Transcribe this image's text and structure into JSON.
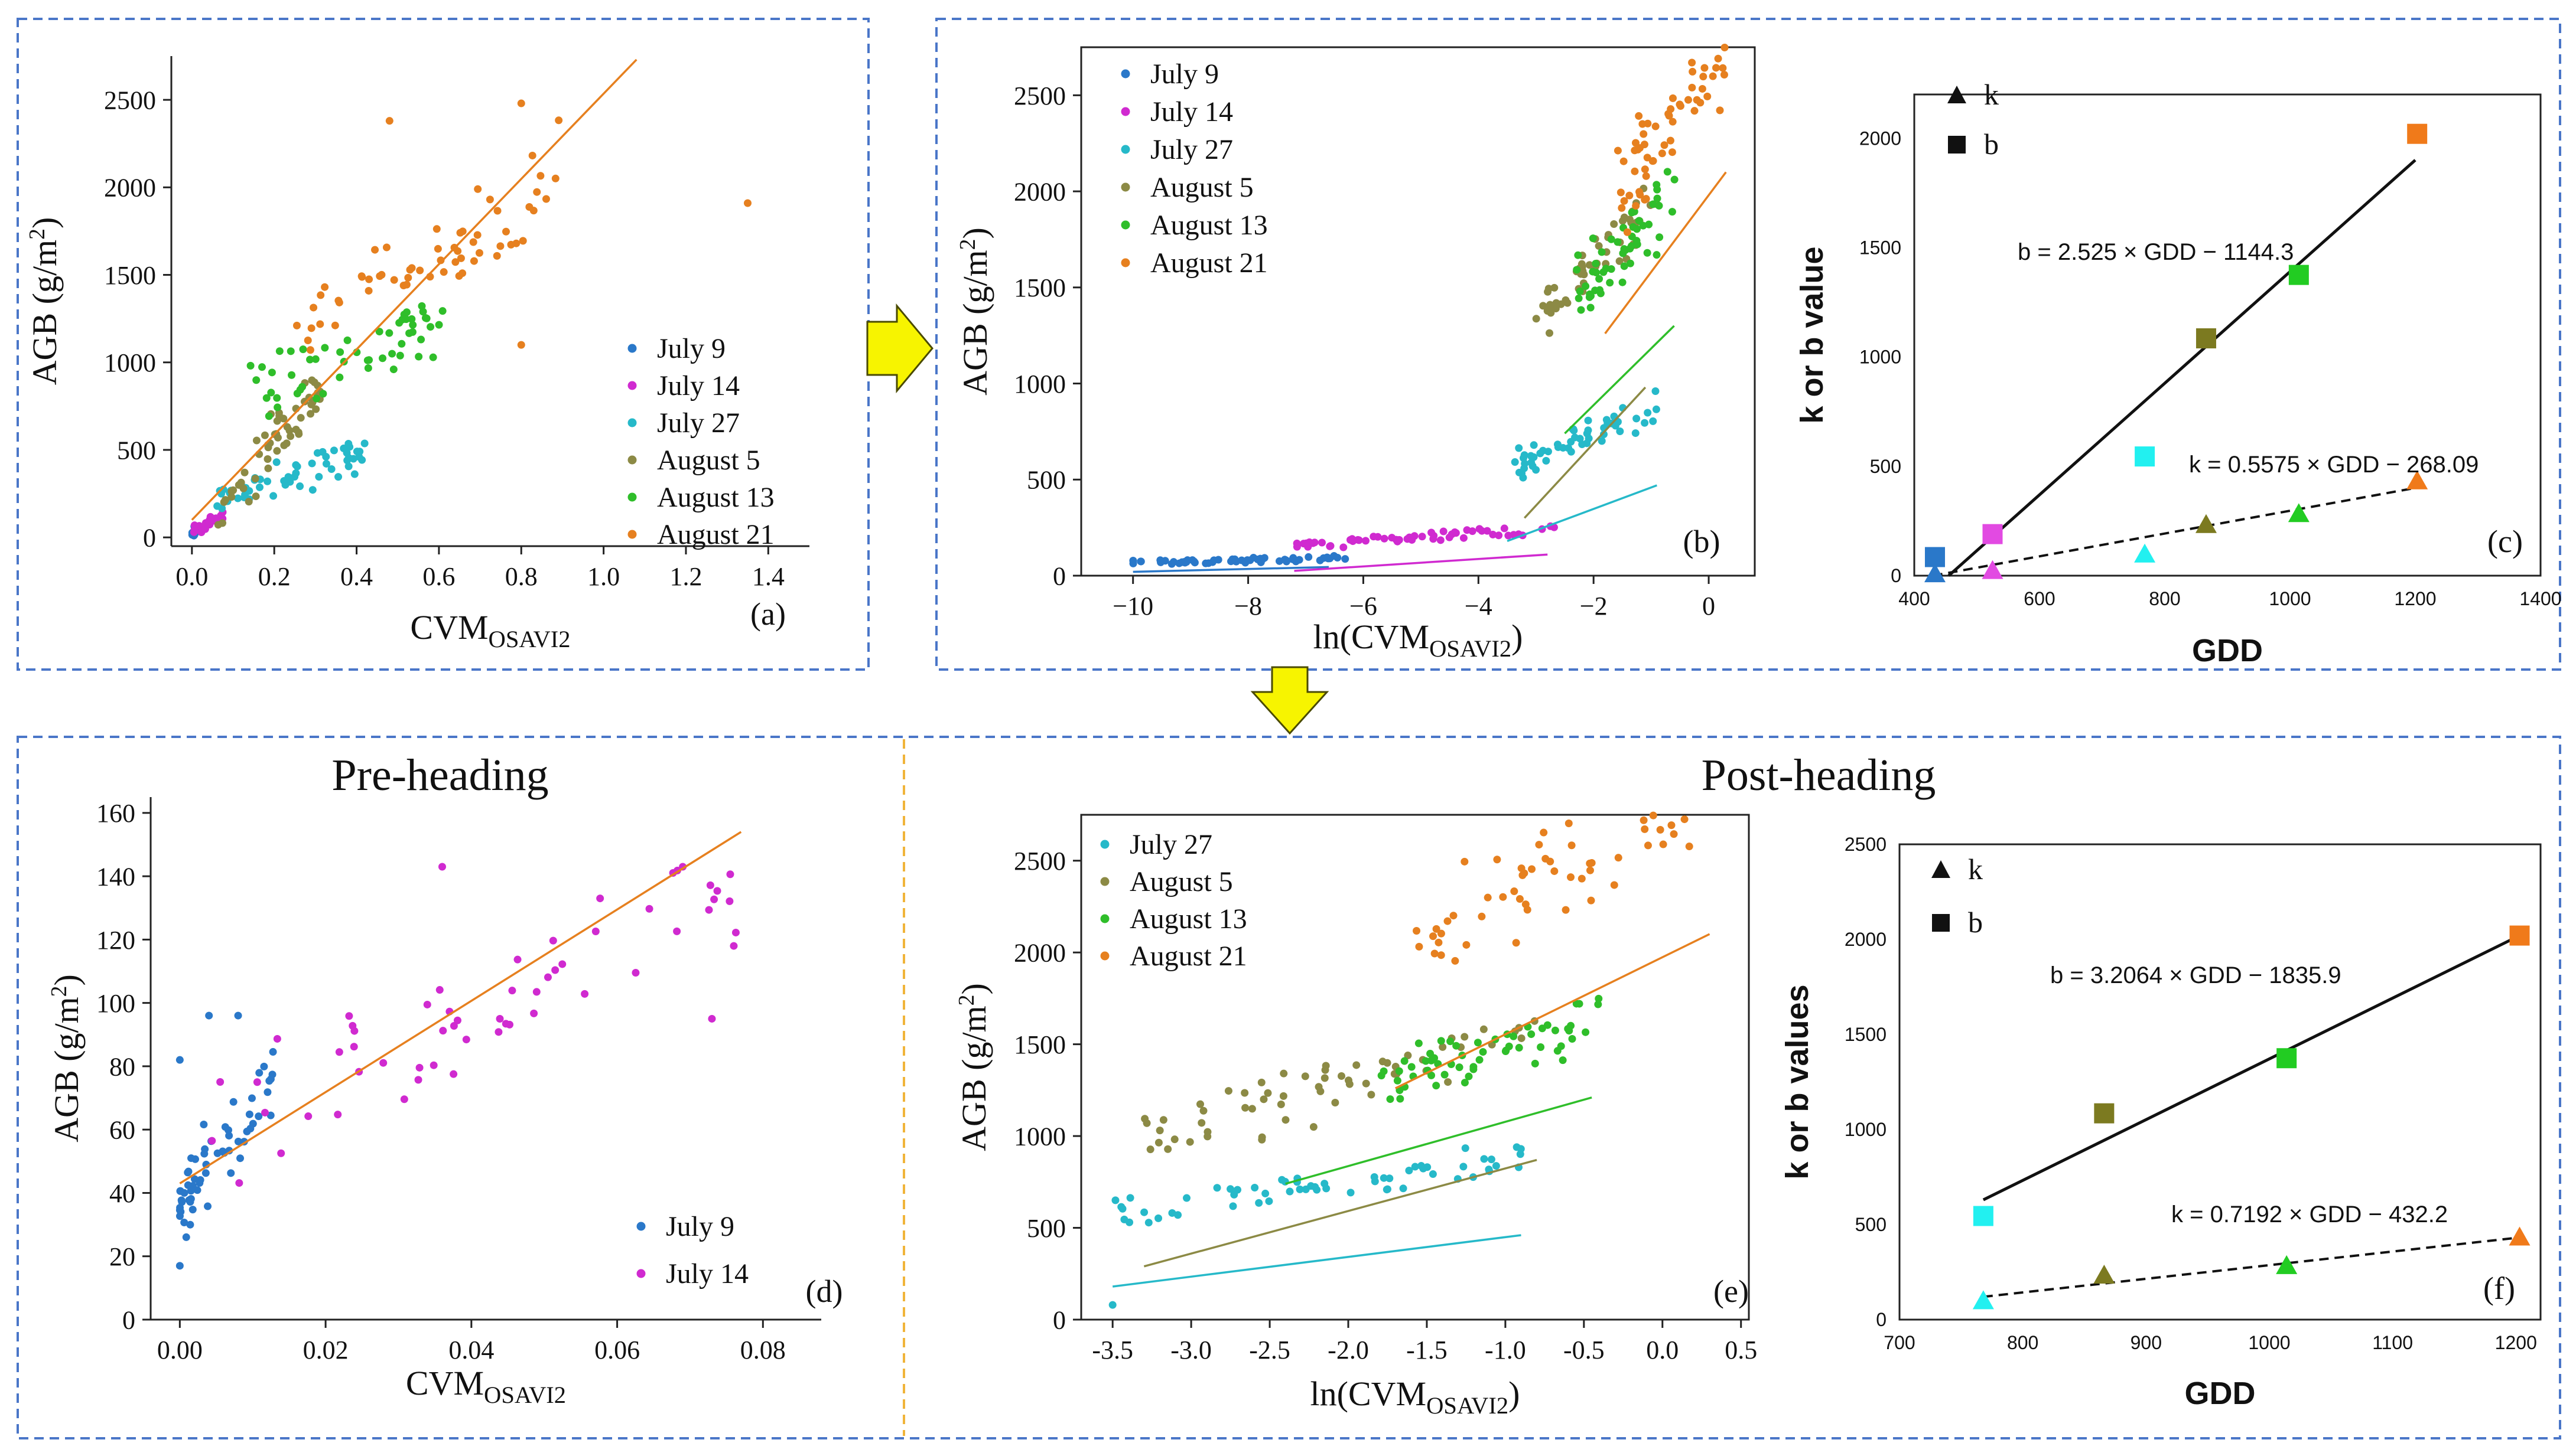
{
  "colors": {
    "July 9": "#2a78c9",
    "July 14": "#d02ad0",
    "July 27": "#26b9c9",
    "August 5": "#8c8a45",
    "August 13": "#2fbe2a",
    "August 21": "#e6801f",
    "fit_pre": "#e6801f",
    "panel_border": "#4a76c8",
    "divider": "#f0b43a",
    "arrow_fill": "#f7f400",
    "arrow_stroke": "#4a4a00",
    "param_cyan": "#22f0f0",
    "param_blue": "#2a78c9",
    "param_magenta": "#e24ae2",
    "param_olive": "#7c7a20",
    "param_green": "#22cc22",
    "param_orange": "#f07a1a"
  },
  "section_titles": {
    "pre": "Pre-heading",
    "post": "Post-heading"
  },
  "chart_data": [
    {
      "id": "a",
      "type": "scatter",
      "panel_label": "(a)",
      "xlabel": "CVM",
      "xlabel_sub": "OSAVI2",
      "ylabel": "AGB (g/m",
      "ylabel_sup": "2",
      "ylabel_close": ")",
      "xlim": [
        -0.05,
        1.5
      ],
      "ylim": [
        -50,
        2750
      ],
      "xticks": [
        0.0,
        0.2,
        0.4,
        0.6,
        0.8,
        1.0,
        1.2,
        1.4
      ],
      "xticklabels": [
        "0.0",
        "0.2",
        "0.4",
        "0.6",
        "0.8",
        "1.0",
        "1.2",
        "1.4"
      ],
      "yticks": [
        0,
        500,
        1000,
        1500,
        2000,
        2500
      ],
      "yticklabels": [
        "0",
        "500",
        "1000",
        "1500",
        "2000",
        "2500"
      ],
      "legend": [
        "July 9",
        "July 14",
        "July 27",
        "August 5",
        "August 13",
        "August 21"
      ],
      "legend_loc": "lower-right",
      "fit_line": {
        "color": "#e6801f",
        "x": [
          0.0,
          1.08
        ],
        "y": [
          100,
          2730
        ]
      },
      "series": [
        {
          "name": "July 9",
          "spec": {
            "n": 16,
            "x": [
              0.0,
              0.02
            ],
            "x_pow": 1,
            "a": 20,
            "b": 2500,
            "noise": 25,
            "seed": 11
          }
        },
        {
          "name": "July 14",
          "spec": {
            "n": 22,
            "x": [
              0.005,
              0.08
            ],
            "x_pow": 1,
            "a": 40,
            "b": 1200,
            "noise": 30,
            "seed": 12
          }
        },
        {
          "name": "July 27",
          "spec": {
            "n": 55,
            "x": [
              0.05,
              0.42
            ],
            "x_pow": 1,
            "a": 220,
            "b": 700,
            "noise": 90,
            "seed": 13
          }
        },
        {
          "name": "August 5",
          "spec": {
            "n": 55,
            "x": [
              0.06,
              0.33
            ],
            "x_pow": 1,
            "a": 150,
            "b": 2900,
            "noise": 150,
            "seed": 14
          }
        },
        {
          "name": "August 13",
          "spec": {
            "n": 55,
            "x": [
              0.14,
              0.62
            ],
            "x_pow": 1,
            "a": 820,
            "b": 900,
            "noise": 170,
            "seed": 15
          }
        },
        {
          "name": "August 21",
          "spec": {
            "n": 60,
            "x": [
              0.25,
              0.92
            ],
            "x_pow": 1,
            "a": 1200,
            "b": 1300,
            "noise": 280,
            "seed": 16
          },
          "points": [
            [
              1.35,
              1910
            ],
            [
              0.8,
              1100
            ],
            [
              0.8,
              2480
            ],
            [
              0.48,
              2380
            ]
          ]
        }
      ]
    },
    {
      "id": "b",
      "type": "scatter",
      "panel_label": "(b)",
      "xlabel": "ln(CVM",
      "xlabel_sub": "OSAVI2",
      "xlabel_close": ")",
      "ylabel": "AGB (g/m",
      "ylabel_sup": "2",
      "ylabel_close": ")",
      "xlim": [
        -10.9,
        0.8
      ],
      "ylim": [
        0,
        2750
      ],
      "xticks": [
        -10,
        -8,
        -6,
        -4,
        -2,
        0
      ],
      "xticklabels": [
        "−10",
        "−8",
        "−6",
        "−4",
        "−2",
        "0"
      ],
      "yticks": [
        0,
        500,
        1000,
        1500,
        2000,
        2500
      ],
      "yticklabels": [
        "0",
        "500",
        "1000",
        "1500",
        "2000",
        "2500"
      ],
      "legend": [
        "July 9",
        "July 14",
        "July 27",
        "August 5",
        "August 13",
        "August 21"
      ],
      "legend_loc": "upper-left",
      "fit_lines": [
        {
          "series": "July 9",
          "x": [
            -10,
            -6.6
          ],
          "y": [
            20,
            45
          ]
        },
        {
          "series": "July 14",
          "x": [
            -7.2,
            -2.8
          ],
          "y": [
            25,
            110
          ]
        },
        {
          "series": "July 27",
          "x": [
            -3.5,
            -0.9
          ],
          "y": [
            180,
            470
          ]
        },
        {
          "series": "August 5",
          "x": [
            -3.2,
            -1.1
          ],
          "y": [
            300,
            980
          ]
        },
        {
          "series": "August 13",
          "x": [
            -2.5,
            -0.6
          ],
          "y": [
            740,
            1300
          ]
        },
        {
          "series": "August 21",
          "x": [
            -1.8,
            0.3
          ],
          "y": [
            1260,
            2100
          ]
        }
      ],
      "series": [
        {
          "name": "July 9",
          "spec": {
            "n": 55,
            "x": [
              -10,
              -6.3
            ],
            "x_pow": 1,
            "a": 72,
            "b": 5,
            "noise": 12,
            "seed": 21
          }
        },
        {
          "name": "July 14",
          "spec": {
            "n": 55,
            "x": [
              -7.2,
              -2.6
            ],
            "x_pow": 1,
            "a": 160,
            "b": 19,
            "noise": 22,
            "seed": 22
          }
        },
        {
          "name": "July 27",
          "spec": {
            "n": 55,
            "x": [
              -3.4,
              -0.9
            ],
            "x_pow": 1,
            "a": 580,
            "b": 115,
            "noise": 80,
            "seed": 23
          }
        },
        {
          "name": "August 5",
          "spec": {
            "n": 55,
            "x": [
              -3.0,
              -0.9
            ],
            "x_pow": 1,
            "a": 1300,
            "b": 330,
            "noise": 140,
            "seed": 24
          }
        },
        {
          "name": "August 13",
          "spec": {
            "n": 55,
            "x": [
              -2.3,
              -0.5
            ],
            "x_pow": 1,
            "a": 1450,
            "b": 300,
            "noise": 160,
            "seed": 25
          }
        },
        {
          "name": "August 21",
          "spec": {
            "n": 60,
            "x": [
              -1.6,
              0.3
            ],
            "x_pow": 1,
            "a": 2000,
            "b": 400,
            "noise": 260,
            "seed": 26
          }
        }
      ]
    },
    {
      "id": "c",
      "type": "scatter",
      "panel_label": "(c)",
      "xlabel": "GDD",
      "ylabel": "k or b value",
      "xlim": [
        400,
        1400
      ],
      "ylim": [
        0,
        2200
      ],
      "xticks": [
        400,
        600,
        800,
        1000,
        1200,
        1400
      ],
      "xticklabels": [
        "400",
        "600",
        "800",
        "1000",
        "1200",
        "1400"
      ],
      "yticks": [
        0,
        500,
        1000,
        1500,
        2000
      ],
      "yticklabels": [
        "0",
        "500",
        "1000",
        "1500",
        "2000"
      ],
      "legend": [
        "k",
        "b"
      ],
      "legend_loc": "upper-left",
      "equations": {
        "b": "b = 2.525 × GDD − 1144.3",
        "k": "k = 0.5575 × GDD − 268.09"
      },
      "b_line": {
        "x": [
          455,
          1200
        ],
        "y": [
          0,
          1900
        ]
      },
      "k_line": {
        "x": [
          430,
          1200
        ],
        "y": [
          0,
          401
        ]
      },
      "b_points": [
        {
          "gdd": 433,
          "value": 85,
          "series": "July 9"
        },
        {
          "gdd": 525,
          "value": 190,
          "series": "July 14"
        },
        {
          "gdd": 768,
          "value": 545,
          "series": "July 27"
        },
        {
          "gdd": 866,
          "value": 1085,
          "series": "August 5"
        },
        {
          "gdd": 1014,
          "value": 1375,
          "series": "August 13"
        },
        {
          "gdd": 1203,
          "value": 2020,
          "series": "August 21"
        }
      ],
      "k_points": [
        {
          "gdd": 433,
          "value": 5,
          "series": "July 9"
        },
        {
          "gdd": 525,
          "value": 20,
          "series": "July 14"
        },
        {
          "gdd": 768,
          "value": 95,
          "series": "July 27"
        },
        {
          "gdd": 866,
          "value": 230,
          "series": "August 5"
        },
        {
          "gdd": 1014,
          "value": 280,
          "series": "August 13"
        },
        {
          "gdd": 1203,
          "value": 430,
          "series": "August 21"
        }
      ]
    },
    {
      "id": "d",
      "type": "scatter",
      "panel_label": "(d)",
      "xlabel": "CVM",
      "xlabel_sub": "OSAVI2",
      "ylabel": "AGB (g/m",
      "ylabel_sup": "2",
      "ylabel_close": ")",
      "xlim": [
        -0.004,
        0.088
      ],
      "ylim": [
        0,
        165
      ],
      "xticks": [
        0.0,
        0.02,
        0.04,
        0.06,
        0.08
      ],
      "xticklabels": [
        "0.00",
        "0.02",
        "0.04",
        "0.06",
        "0.08"
      ],
      "yticks": [
        0,
        20,
        40,
        60,
        80,
        100,
        120,
        140,
        160
      ],
      "yticklabels": [
        "0",
        "20",
        "40",
        "60",
        "80",
        "100",
        "120",
        "140",
        "160"
      ],
      "legend": [
        "July 9",
        "July 14"
      ],
      "legend_loc": "lower-right",
      "fit_line": {
        "color": "#e6801f",
        "x": [
          0.0,
          0.077
        ],
        "y": [
          43,
          154
        ]
      },
      "series": [
        {
          "name": "July 9",
          "spec": {
            "n": 60,
            "x": [
              0.0,
              0.013
            ],
            "x_pow": 1.8,
            "a": 36,
            "b": 3200,
            "noise": 11,
            "seed": 41
          },
          "points": [
            [
              0.0,
              82
            ],
            [
              0.004,
              96
            ],
            [
              0.008,
              96
            ],
            [
              0.0,
              17
            ]
          ]
        },
        {
          "name": "July 14",
          "spec": {
            "n": 55,
            "x": [
              0.003,
              0.077
            ],
            "x_pow": 1,
            "a": 55,
            "b": 1100,
            "noise": 16,
            "seed": 42
          },
          "points": [
            [
              0.069,
              143
            ],
            [
              0.076,
              118
            ],
            [
              0.073,
              95
            ],
            [
              0.036,
              143
            ]
          ]
        }
      ]
    },
    {
      "id": "e",
      "type": "scatter",
      "panel_label": "(e)",
      "xlabel": "ln(CVM",
      "xlabel_sub": "OSAVI2",
      "xlabel_close": ")",
      "ylabel": "AGB (g/m",
      "ylabel_sup": "2",
      "ylabel_close": ")",
      "xlim": [
        -3.7,
        0.55
      ],
      "ylim": [
        0,
        2750
      ],
      "xticks": [
        -3.5,
        -3.0,
        -2.5,
        -2.0,
        -1.5,
        -1.0,
        -0.5,
        0.0,
        0.5
      ],
      "xticklabels": [
        "-3.5",
        "-3.0",
        "-2.5",
        "-2.0",
        "-1.5",
        "-1.0",
        "-0.5",
        "0.0",
        "0.5"
      ],
      "yticks": [
        0,
        500,
        1000,
        1500,
        2000,
        2500
      ],
      "yticklabels": [
        "0",
        "500",
        "1000",
        "1500",
        "2000",
        "2500"
      ],
      "legend": [
        "July 27",
        "August 5",
        "August 13",
        "August 21"
      ],
      "legend_loc": "upper-left",
      "fit_lines": [
        {
          "series": "July 27",
          "x": [
            -3.5,
            -0.9
          ],
          "y": [
            180,
            460
          ]
        },
        {
          "series": "August 5",
          "x": [
            -3.3,
            -0.8
          ],
          "y": [
            290,
            870
          ]
        },
        {
          "series": "August 13",
          "x": [
            -2.4,
            -0.45
          ],
          "y": [
            740,
            1210
          ]
        },
        {
          "series": "August 21",
          "x": [
            -1.7,
            0.3
          ],
          "y": [
            1260,
            2100
          ]
        }
      ],
      "series": [
        {
          "name": "July 27",
          "spec": {
            "n": 60,
            "x": [
              -3.5,
              -0.9
            ],
            "x_pow": 1,
            "a": 580,
            "b": 115,
            "noise": 80,
            "seed": 51
          },
          "points": [
            [
              -3.5,
              80
            ]
          ]
        },
        {
          "name": "August 5",
          "spec": {
            "n": 60,
            "x": [
              -3.3,
              -0.8
            ],
            "x_pow": 1,
            "a": 1000,
            "b": 235,
            "noise": 150,
            "seed": 52
          }
        },
        {
          "name": "August 13",
          "spec": {
            "n": 60,
            "x": [
              -1.8,
              -0.4
            ],
            "x_pow": 1,
            "a": 1300,
            "b": 240,
            "noise": 150,
            "seed": 53
          }
        },
        {
          "name": "August 21",
          "spec": {
            "n": 65,
            "x": [
              -1.6,
              0.3
            ],
            "x_pow": 1,
            "a": 2050,
            "b": 430,
            "noise": 260,
            "seed": 54
          }
        }
      ]
    },
    {
      "id": "f",
      "type": "scatter",
      "panel_label": "(f)",
      "xlabel": "GDD",
      "ylabel": "k or b values",
      "xlim": [
        700,
        1220
      ],
      "ylim": [
        0,
        2500
      ],
      "xticks": [
        700,
        800,
        900,
        1000,
        1100,
        1200
      ],
      "xticklabels": [
        "700",
        "800",
        "900",
        "1000",
        "1100",
        "1200"
      ],
      "yticks": [
        0,
        500,
        1000,
        1500,
        2000,
        2500
      ],
      "yticklabels": [
        "0",
        "500",
        "1000",
        "1500",
        "2000",
        "2500"
      ],
      "legend": [
        "k",
        "b"
      ],
      "legend_loc": "upper-left",
      "equations": {
        "b": "b = 3.2064 × GDD − 1835.9",
        "k": "k = 0.7192 × GDD − 432.2"
      },
      "b_line": {
        "x": [
          768,
          1203
        ],
        "y": [
          630,
          2020
        ]
      },
      "k_line": {
        "x": [
          768,
          1203
        ],
        "y": [
          120,
          432
        ]
      },
      "b_points": [
        {
          "gdd": 768,
          "value": 545,
          "series": "July 27"
        },
        {
          "gdd": 866,
          "value": 1085,
          "series": "August 5"
        },
        {
          "gdd": 1014,
          "value": 1375,
          "series": "August 13"
        },
        {
          "gdd": 1203,
          "value": 2020,
          "series": "August 21"
        }
      ],
      "k_points": [
        {
          "gdd": 768,
          "value": 95,
          "series": "July 27"
        },
        {
          "gdd": 866,
          "value": 230,
          "series": "August 5"
        },
        {
          "gdd": 1014,
          "value": 280,
          "series": "August 13"
        },
        {
          "gdd": 1203,
          "value": 430,
          "series": "August 21"
        }
      ]
    }
  ]
}
